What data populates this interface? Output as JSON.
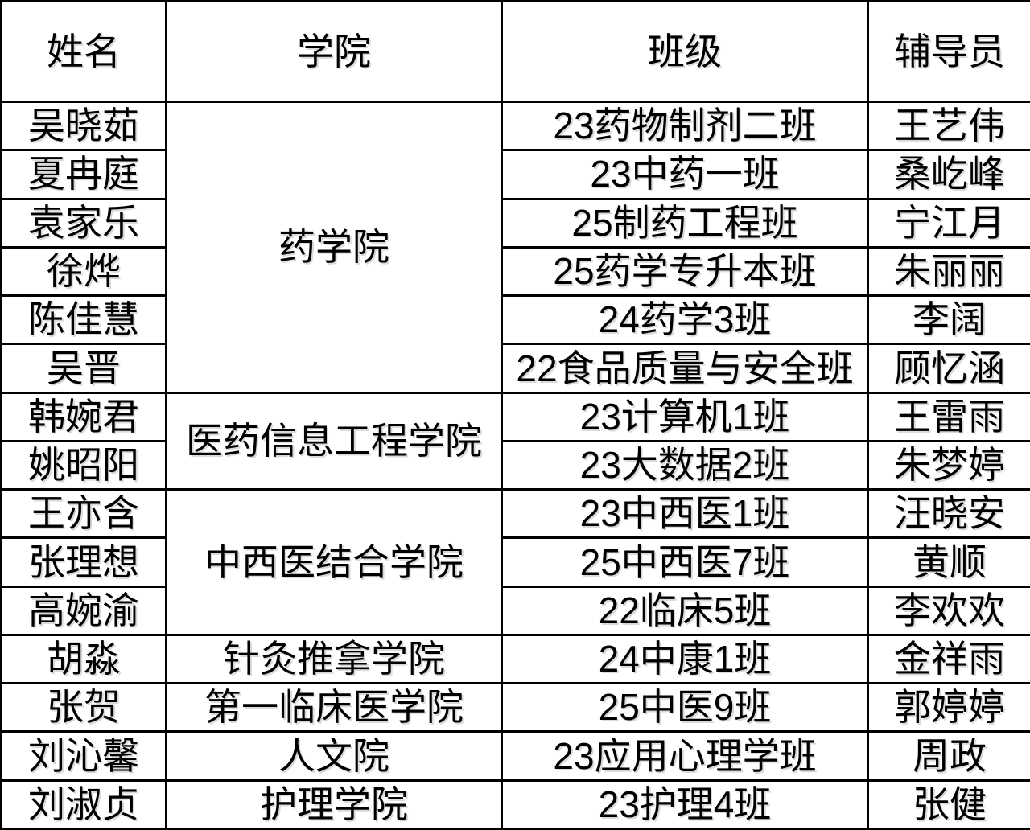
{
  "table": {
    "columns": {
      "name": "姓名",
      "college": "学院",
      "class": "班级",
      "counselor": "辅导员"
    },
    "colors": {
      "border": "#000000",
      "background": "#ffffff",
      "text": "#000000"
    },
    "rows": [
      {
        "name": "吴晓茹",
        "college": "药学院",
        "college_rowspan": "6",
        "class": "23药物制剂二班",
        "counselor": "王艺伟"
      },
      {
        "name": "夏冉庭",
        "class": "23中药一班",
        "counselor": "桑屹峰"
      },
      {
        "name": "袁家乐",
        "class": "25制药工程班",
        "counselor": "宁江月"
      },
      {
        "name": "徐烨",
        "class": "25药学专升本班",
        "counselor": "朱丽丽"
      },
      {
        "name": "陈佳慧",
        "class": "24药学3班",
        "counselor": "李阔"
      },
      {
        "name": "吴晋",
        "class": "22食品质量与安全班",
        "counselor": "顾忆涵"
      },
      {
        "name": "韩婉君",
        "college": "医药信息工程学院",
        "college_rowspan": "2",
        "class": "23计算机1班",
        "counselor": "王雷雨"
      },
      {
        "name": "姚昭阳",
        "class": "23大数据2班",
        "counselor": "朱梦婷"
      },
      {
        "name": "王亦含",
        "college": "中西医结合学院",
        "college_rowspan": "3",
        "class": "23中西医1班",
        "counselor": "汪晓安"
      },
      {
        "name": "张理想",
        "class": "25中西医7班",
        "counselor": "黄顺"
      },
      {
        "name": "高婉渝",
        "class": "22临床5班",
        "counselor": "李欢欢"
      },
      {
        "name": "胡淼",
        "college": "针灸推拿学院",
        "college_rowspan": "1",
        "class": "24中康1班",
        "counselor": "金祥雨"
      },
      {
        "name": "张贺",
        "college": "第一临床医学院",
        "college_rowspan": "1",
        "class": "25中医9班",
        "counselor": "郭婷婷"
      },
      {
        "name": "刘沁馨",
        "college": "人文院",
        "college_rowspan": "1",
        "class": "23应用心理学班",
        "counselor": "周政"
      },
      {
        "name": "刘淑贞",
        "college": "护理学院",
        "college_rowspan": "1",
        "class": "23护理4班",
        "counselor": "张健"
      }
    ]
  }
}
